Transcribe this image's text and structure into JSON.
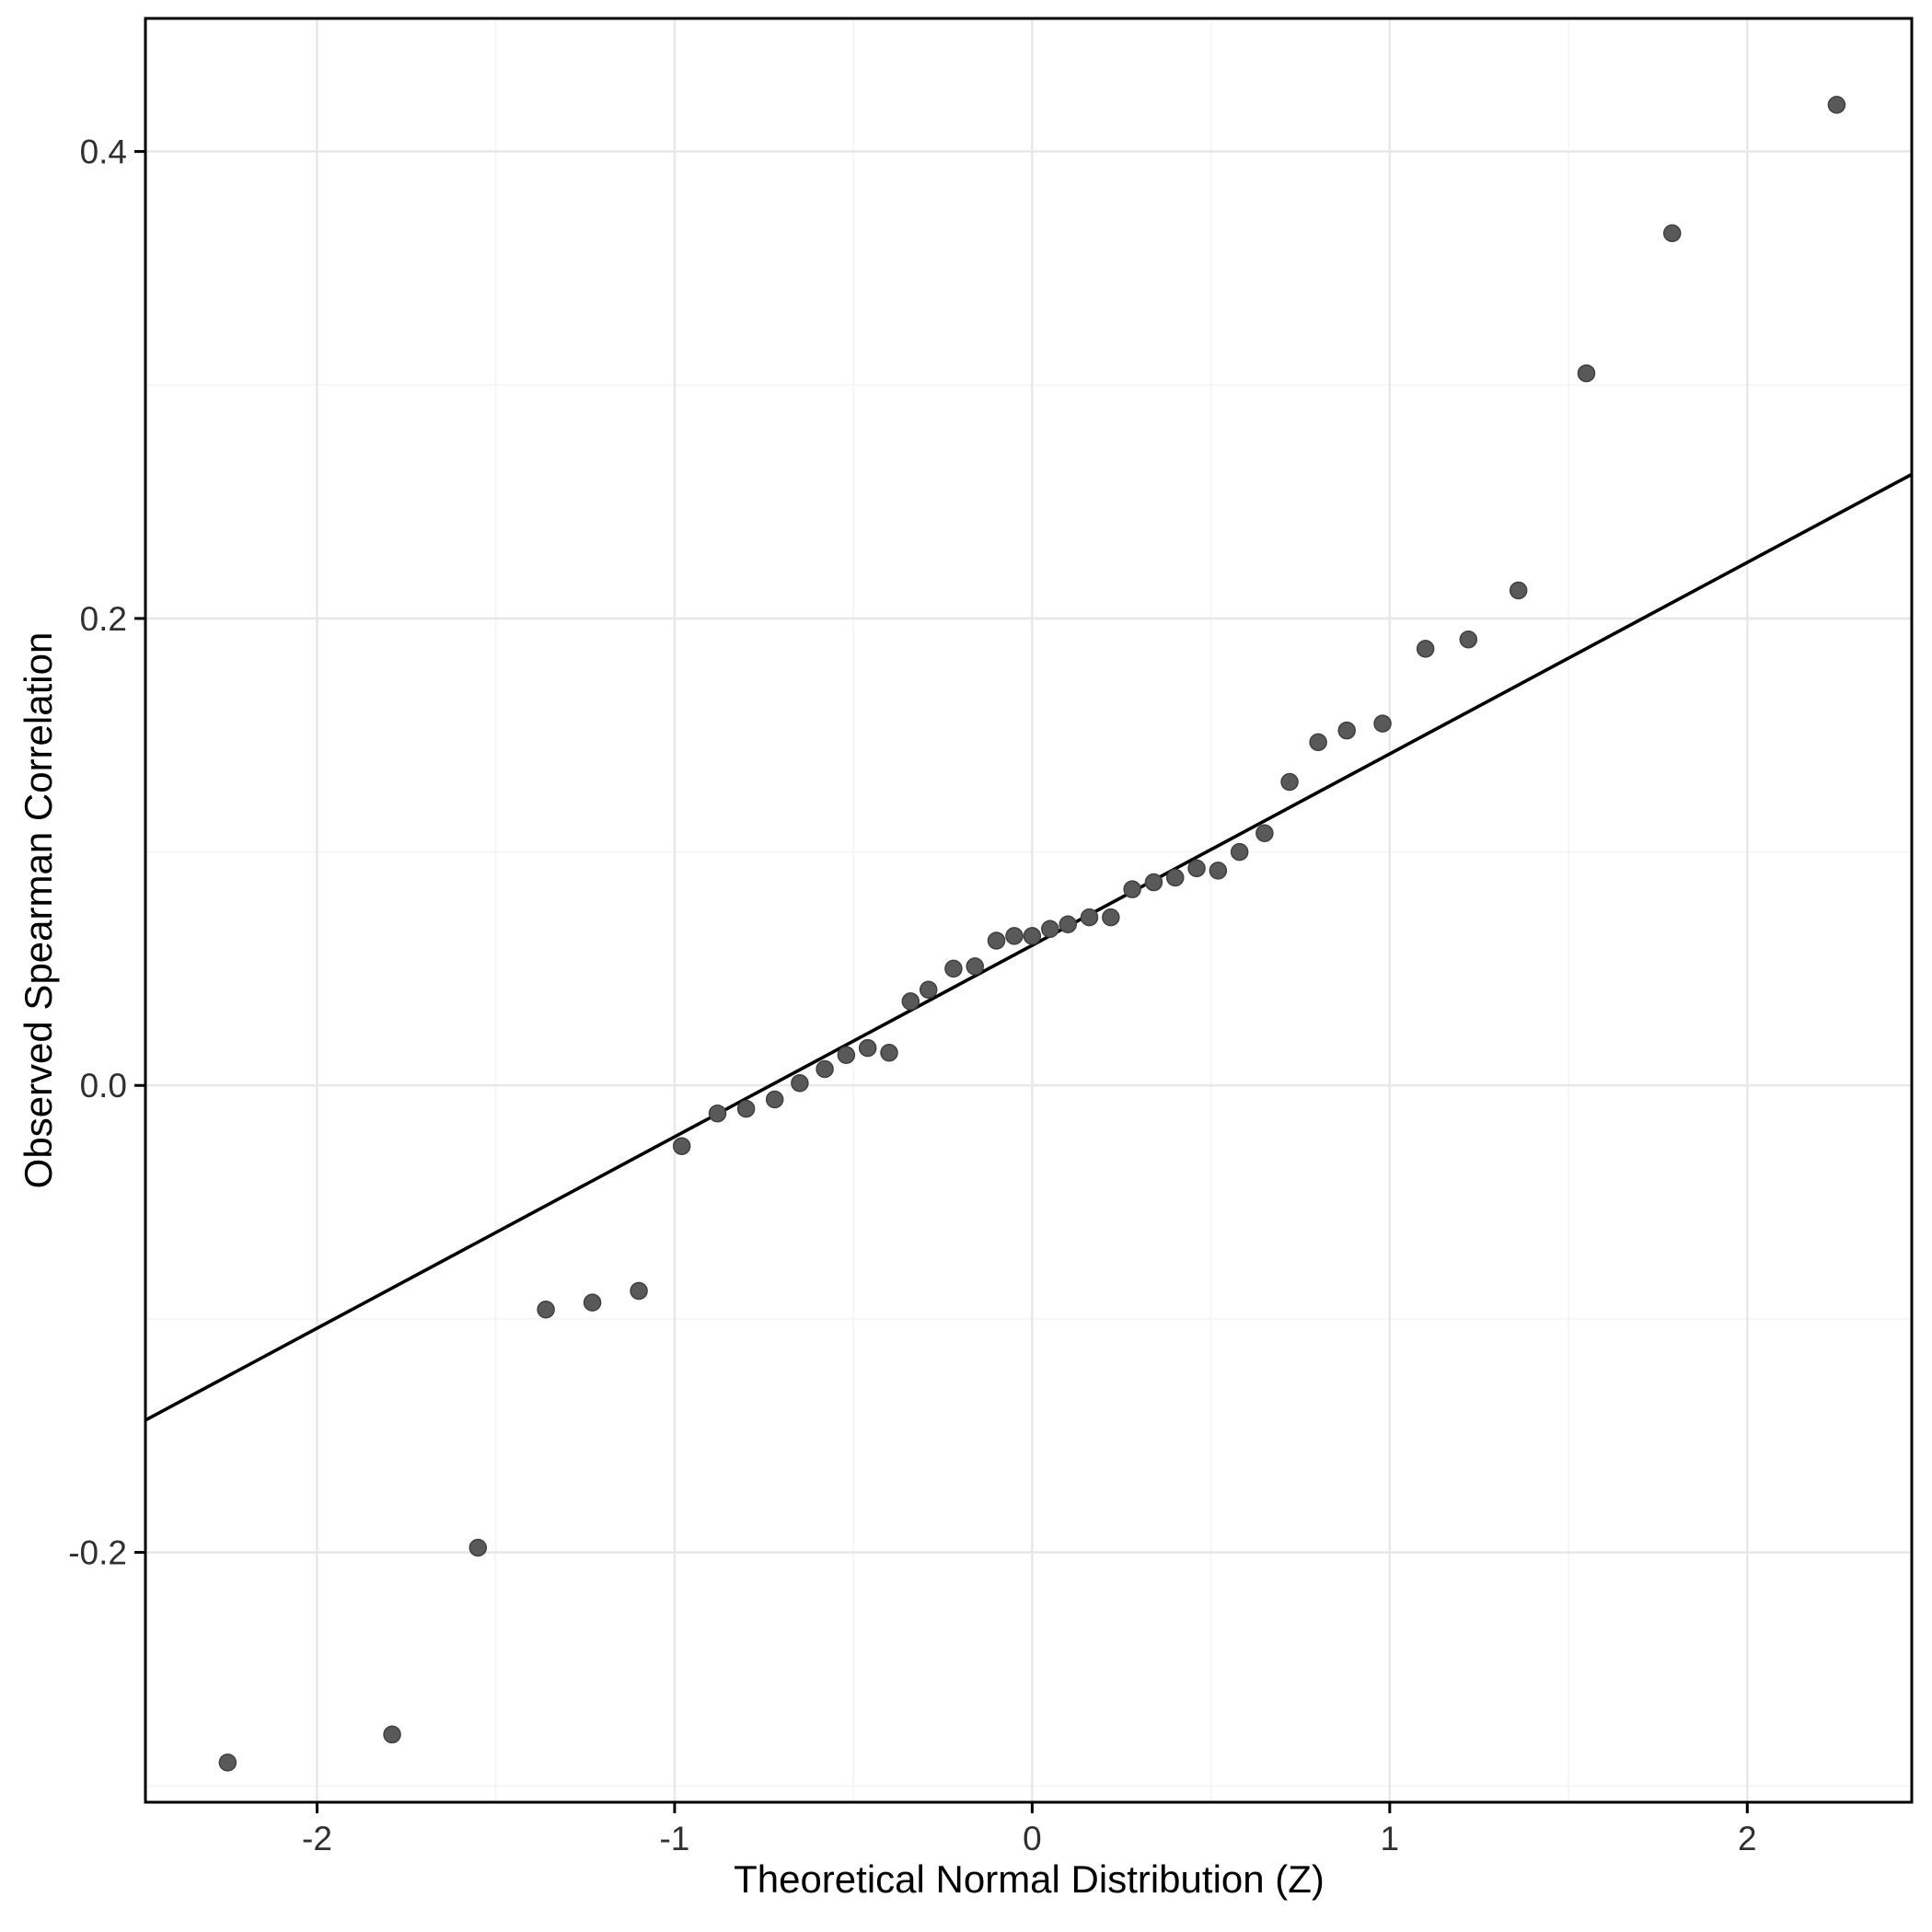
{
  "chart_data": {
    "type": "scatter",
    "title": "",
    "xlabel": "Theoretical Normal Distribution (Z)",
    "ylabel": "Observed Spearman Correlation",
    "xlim": [
      -2.48,
      2.46
    ],
    "ylim": [
      -0.307,
      0.457
    ],
    "x_ticks": [
      -2,
      -1,
      0,
      1,
      2
    ],
    "x_tick_labels": [
      "-2",
      "-1",
      "0",
      "1",
      "2"
    ],
    "x_minor_ticks": [
      -1.5,
      -0.5,
      0.5,
      1.5
    ],
    "y_ticks": [
      -0.2,
      0.0,
      0.2,
      0.4
    ],
    "y_tick_labels": [
      "-0.2",
      "0.0",
      "0.2",
      "0.4"
    ],
    "y_minor_ticks": [
      -0.3,
      -0.1,
      0.1,
      0.3
    ],
    "grid": true,
    "legend": "none",
    "colors": {
      "point": "#595959",
      "point_edge": "#404040",
      "reference_line": "#000000",
      "panel_border": "#000000",
      "grid_major": "#e8e8e8",
      "grid_minor": "#f4f4f4",
      "tick_label": "#303030",
      "background": "#ffffff"
    },
    "reference_line": {
      "intercept": 0.06,
      "slope": 0.082
    },
    "points": [
      [
        -2.25,
        -0.29
      ],
      [
        -1.79,
        -0.278
      ],
      [
        -1.55,
        -0.198
      ],
      [
        -1.36,
        -0.096
      ],
      [
        -1.23,
        -0.093
      ],
      [
        -1.1,
        -0.088
      ],
      [
        -0.98,
        -0.026
      ],
      [
        -0.88,
        -0.012
      ],
      [
        -0.8,
        -0.01
      ],
      [
        -0.72,
        -0.006
      ],
      [
        -0.65,
        0.001
      ],
      [
        -0.58,
        0.007
      ],
      [
        -0.52,
        0.013
      ],
      [
        -0.46,
        0.016
      ],
      [
        -0.4,
        0.014
      ],
      [
        -0.34,
        0.036
      ],
      [
        -0.29,
        0.041
      ],
      [
        -0.22,
        0.05
      ],
      [
        -0.16,
        0.051
      ],
      [
        -0.1,
        0.062
      ],
      [
        -0.05,
        0.064
      ],
      [
        0.0,
        0.064
      ],
      [
        0.05,
        0.067
      ],
      [
        0.1,
        0.069
      ],
      [
        0.16,
        0.072
      ],
      [
        0.22,
        0.072
      ],
      [
        0.28,
        0.084
      ],
      [
        0.34,
        0.087
      ],
      [
        0.4,
        0.089
      ],
      [
        0.46,
        0.093
      ],
      [
        0.52,
        0.092
      ],
      [
        0.58,
        0.1
      ],
      [
        0.65,
        0.108
      ],
      [
        0.72,
        0.13
      ],
      [
        0.8,
        0.147
      ],
      [
        0.88,
        0.152
      ],
      [
        0.98,
        0.155
      ],
      [
        1.1,
        0.187
      ],
      [
        1.22,
        0.191
      ],
      [
        1.36,
        0.212
      ],
      [
        1.55,
        0.305
      ],
      [
        1.79,
        0.365
      ],
      [
        2.25,
        0.42
      ]
    ]
  }
}
